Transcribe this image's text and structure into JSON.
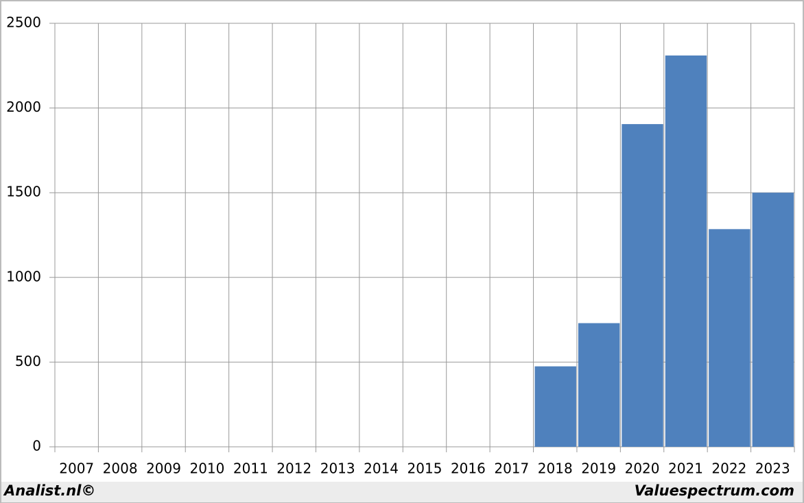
{
  "chart_data": {
    "type": "bar",
    "categories": [
      "2007",
      "2008",
      "2009",
      "2010",
      "2011",
      "2012",
      "2013",
      "2014",
      "2015",
      "2016",
      "2017",
      "2018",
      "2019",
      "2020",
      "2021",
      "2022",
      "2023"
    ],
    "values": [
      null,
      null,
      null,
      null,
      null,
      null,
      null,
      null,
      null,
      null,
      null,
      475,
      730,
      1905,
      2310,
      1285,
      1500
    ],
    "color": "#4f81bd",
    "ylim": [
      0,
      2500
    ],
    "yticks": [
      0,
      500,
      1000,
      1500,
      2000,
      2500
    ],
    "grid": true,
    "footer_left": "Analist.nl©",
    "footer_right": "Valuespectrum.com"
  }
}
